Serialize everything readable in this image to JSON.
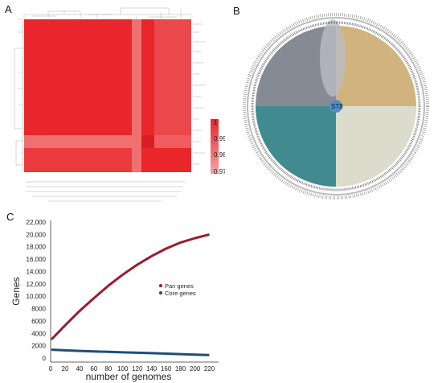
{
  "panels": {
    "a": "A",
    "b": "B",
    "c": "C"
  },
  "heatmap": {
    "scale_ticks": [
      "1",
      "0.99",
      "0.98",
      "0.97"
    ],
    "colors": {
      "high": "#e8262b",
      "mid": "#f06a6a",
      "low": "#f5a3a3",
      "dendrogram": "#888888"
    }
  },
  "tree": {
    "root_label": "ST8",
    "clade_colors": [
      "#707783",
      "#c9a766",
      "#2c7d84",
      "#d8d8c8"
    ]
  },
  "chart_data": {
    "type": "line",
    "xlabel": "number of genomes",
    "ylabel": "Genes",
    "xlim": [
      0,
      225
    ],
    "ylim": [
      0,
      22000
    ],
    "x_ticks": [
      0,
      20,
      40,
      60,
      80,
      100,
      120,
      140,
      160,
      180,
      200,
      220
    ],
    "y_ticks": [
      {
        "value": 0,
        "label": "0"
      },
      {
        "value": 2000,
        "label": "2000"
      },
      {
        "value": 4000,
        "label": "4000"
      },
      {
        "value": 6000,
        "label": "6000"
      },
      {
        "value": 8000,
        "label": "8000"
      },
      {
        "value": 10000,
        "label": "10,000"
      },
      {
        "value": 12000,
        "label": "12,000"
      },
      {
        "value": 14000,
        "label": "14,000"
      },
      {
        "value": 16000,
        "label": "16,000"
      },
      {
        "value": 18000,
        "label": "18,000"
      },
      {
        "value": 20000,
        "label": "20,000"
      },
      {
        "value": 22000,
        "label": "22,000"
      }
    ],
    "grid": false,
    "legend_position": "center-right",
    "series": [
      {
        "name": "Pan genes",
        "color": "#9b1c2e",
        "x": [
          1,
          20,
          40,
          60,
          80,
          100,
          120,
          140,
          160,
          180,
          200,
          220
        ],
        "values": [
          3000,
          5300,
          7600,
          9700,
          11700,
          13500,
          15100,
          16500,
          17700,
          18700,
          19400,
          20000
        ]
      },
      {
        "name": "Core genes",
        "color": "#1f4e79",
        "x": [
          1,
          20,
          40,
          60,
          80,
          100,
          120,
          140,
          160,
          180,
          200,
          220
        ],
        "values": [
          1350,
          1250,
          1160,
          1080,
          1000,
          930,
          860,
          790,
          720,
          640,
          560,
          480
        ]
      }
    ]
  }
}
